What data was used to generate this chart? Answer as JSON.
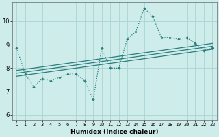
{
  "xlabel": "Humidex (Indice chaleur)",
  "xlim": [
    -0.5,
    23.5
  ],
  "ylim": [
    5.8,
    10.8
  ],
  "xticks": [
    0,
    1,
    2,
    3,
    4,
    5,
    6,
    7,
    8,
    9,
    10,
    11,
    12,
    13,
    14,
    15,
    16,
    17,
    18,
    19,
    20,
    21,
    22,
    23
  ],
  "yticks": [
    6,
    7,
    8,
    9,
    10
  ],
  "background_color": "#ceecea",
  "grid_color": "#a8d5d2",
  "line_color": "#2a7d7d",
  "dotted_x": [
    0,
    1,
    2,
    3,
    4,
    5,
    6,
    7,
    8,
    9,
    10,
    11,
    12,
    13,
    14,
    15,
    16,
    17,
    18,
    19,
    20,
    21,
    22,
    23
  ],
  "dotted_y": [
    8.85,
    7.75,
    7.2,
    7.55,
    7.45,
    7.6,
    7.75,
    7.75,
    7.45,
    6.65,
    8.85,
    8.0,
    8.0,
    9.25,
    9.55,
    10.55,
    10.2,
    9.3,
    9.3,
    9.25,
    9.3,
    9.05,
    8.75,
    8.85
  ],
  "reg_lines": [
    {
      "x": [
        0,
        23
      ],
      "y": [
        7.9,
        9.05
      ]
    },
    {
      "x": [
        0,
        23
      ],
      "y": [
        7.78,
        8.93
      ]
    },
    {
      "x": [
        0,
        23
      ],
      "y": [
        7.65,
        8.8
      ]
    }
  ]
}
